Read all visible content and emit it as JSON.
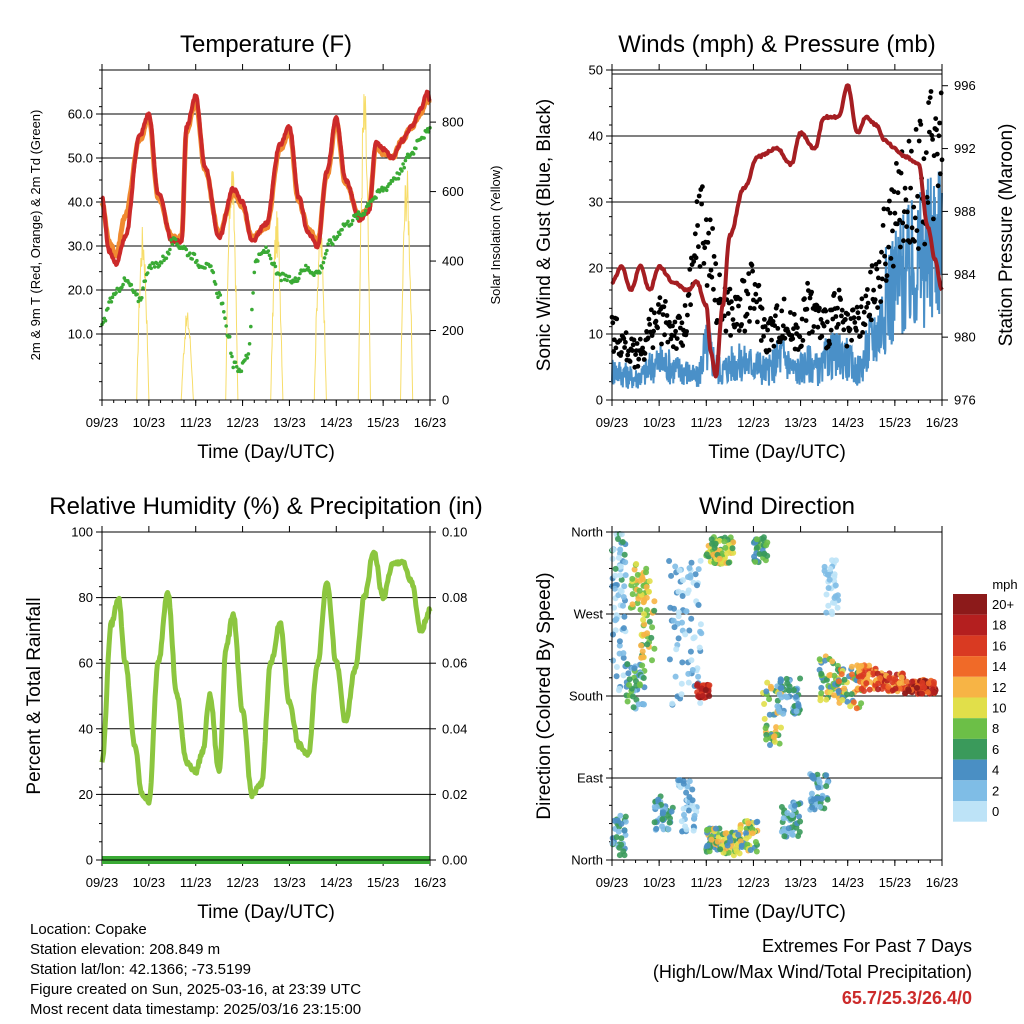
{
  "footer": {
    "location": "Location: Copake",
    "elevation": "Station elevation: 208.849 m",
    "latlon": "Station lat/lon: 42.1366; -73.5199",
    "created": "Figure created on Sun, 2025-03-16, at 23:39 UTC",
    "recent": "Most recent data timestamp: 2025/03/16 23:15:00"
  },
  "extremes": {
    "title": "Extremes For Past 7 Days",
    "subtitle": "(High/Low/Max Wind/Total Precipitation)",
    "values": "65.7/25.3/26.4/0",
    "color": "#cc2a2a"
  },
  "chart_data": [
    {
      "type": "line",
      "title": "Temperature (F)",
      "xlabel": "Time (Day/UTC)",
      "ylabel": "2m & 9m T (Red, Orange) & 2m Td (Green)",
      "y2label": "Solar Insolation (Yellow)",
      "xticks": [
        "09/23",
        "10/23",
        "11/23",
        "12/23",
        "13/23",
        "14/23",
        "15/23",
        "16/23"
      ],
      "ylim": [
        -5,
        70
      ],
      "yticks": [
        "10.0",
        "20.0",
        "30.0",
        "40.0",
        "50.0",
        "60.0"
      ],
      "y2lim": [
        0,
        950
      ],
      "y2ticks": [
        "0",
        "200",
        "400",
        "600",
        "800"
      ],
      "series": [
        {
          "name": "2m T",
          "color": "#cc2a2a",
          "x": [
            0,
            0.15,
            0.3,
            0.5,
            0.8,
            1.0,
            1.2,
            1.5,
            1.7,
            1.8,
            2.0,
            2.2,
            2.5,
            2.8,
            3.0,
            3.2,
            3.5,
            3.8,
            4.0,
            4.2,
            4.4,
            4.6,
            4.8,
            5.0,
            5.2,
            5.5,
            5.7,
            5.85,
            6.0,
            6.2,
            6.4,
            6.6,
            6.8,
            6.95,
            7.0
          ],
          "y": [
            41,
            29,
            26,
            32,
            55,
            60,
            42,
            31,
            31,
            57,
            64,
            48,
            32,
            43,
            40,
            31,
            35,
            53,
            57,
            41,
            33,
            30,
            47,
            59,
            45,
            36,
            38,
            54,
            52,
            50,
            54,
            57,
            61,
            65,
            63
          ]
        },
        {
          "name": "9m T",
          "color": "#f08a30",
          "x": [
            0,
            0.15,
            0.3,
            0.5,
            0.8,
            1.0,
            1.2,
            1.5,
            1.7,
            1.8,
            2.0,
            2.2,
            2.5,
            2.8,
            3.0,
            3.2,
            3.5,
            3.8,
            4.0,
            4.2,
            4.4,
            4.6,
            4.8,
            5.0,
            5.2,
            5.5,
            5.7,
            5.85,
            6.0,
            6.2,
            6.4,
            6.6,
            6.8,
            6.95,
            7.0
          ],
          "y": [
            40,
            31,
            28,
            37,
            54,
            59,
            41,
            32,
            32,
            56,
            63,
            47,
            33,
            42,
            39,
            32,
            34,
            52,
            56,
            40,
            34,
            31,
            46,
            58,
            44,
            37,
            39,
            53,
            51,
            50,
            54,
            57,
            60,
            64,
            62
          ]
        },
        {
          "name": "2m Td",
          "color": "#3aaa35",
          "x": [
            0,
            0.2,
            0.5,
            0.8,
            1.0,
            1.2,
            1.4,
            1.5,
            1.7,
            1.9,
            2.1,
            2.3,
            2.5,
            2.7,
            2.8,
            2.95,
            3.1,
            3.3,
            3.5,
            3.8,
            4.1,
            4.3,
            4.6,
            4.9,
            5.2,
            5.5,
            5.8,
            6.0,
            6.3,
            6.6,
            6.8,
            7.0
          ],
          "y": [
            12,
            18,
            22,
            18,
            25,
            26,
            28,
            31,
            30,
            28,
            26,
            25,
            19,
            10,
            3,
            2,
            5,
            27,
            29,
            23,
            22,
            25,
            24,
            31,
            35,
            37,
            41,
            43,
            46,
            51,
            55,
            56
          ]
        },
        {
          "name": "Solar",
          "color": "#f7dd6a",
          "axis": "y2",
          "peaks": [
            0.87,
            1.82,
            2.77,
            3.73,
            4.66,
            5.6,
            6.5
          ],
          "peakvals": [
            510,
            260,
            720,
            545,
            515,
            920,
            690
          ]
        }
      ]
    },
    {
      "type": "line",
      "title": "Winds (mph) & Pressure (mb)",
      "xlabel": "Time (Day/UTC)",
      "ylabel": "Sonic Wind & Gust (Blue, Black)",
      "y2label": "Station Pressure (Maroon)",
      "xticks": [
        "09/23",
        "10/23",
        "11/23",
        "12/23",
        "13/23",
        "14/23",
        "15/23",
        "16/23"
      ],
      "ylim": [
        0,
        50
      ],
      "yticks": [
        "0",
        "10",
        "20",
        "30",
        "40",
        "50"
      ],
      "y2lim": [
        976,
        997
      ],
      "y2ticks": [
        "976",
        "980",
        "984",
        "988",
        "992",
        "996"
      ],
      "series": [
        {
          "name": "Pressure",
          "color": "#a51e22",
          "axis": "y2",
          "x": [
            0,
            0.2,
            0.4,
            0.6,
            0.8,
            1.0,
            1.3,
            1.6,
            1.8,
            2.0,
            2.1,
            2.2,
            2.35,
            2.5,
            2.8,
            3.1,
            3.5,
            3.8,
            4.0,
            4.3,
            4.5,
            4.8,
            5.0,
            5.2,
            5.4,
            5.6,
            5.8,
            6.0,
            6.2,
            6.5,
            6.7,
            6.85,
            7.0
          ],
          "y": [
            983.5,
            984.5,
            983,
            984.5,
            983,
            984.5,
            983.5,
            983,
            983.5,
            982,
            979,
            977.5,
            982,
            986.5,
            989.5,
            991.5,
            992,
            991,
            993,
            992,
            994,
            994,
            996,
            993,
            994,
            993.5,
            992.5,
            992,
            991.5,
            991,
            987,
            985,
            983
          ]
        },
        {
          "name": "Wind",
          "color": "#4a90c8",
          "x": [
            0,
            0.5,
            1.0,
            1.5,
            1.8,
            2.0,
            2.3,
            2.6,
            3.0,
            3.3,
            3.6,
            3.9,
            4.2,
            4.4,
            4.6,
            4.9,
            5.2,
            5.6,
            5.9,
            6.2,
            6.6,
            6.9,
            7.0
          ],
          "y": [
            4,
            3,
            5,
            4,
            3,
            7,
            4,
            5,
            5,
            4,
            6,
            4,
            5,
            4,
            6,
            6,
            4,
            9,
            15,
            17,
            19,
            22,
            25
          ]
        },
        {
          "name": "Gust",
          "color": "#000000",
          "x": [
            0,
            0.5,
            1.0,
            1.5,
            1.7,
            1.85,
            2.0,
            2.3,
            2.6,
            3.0,
            3.3,
            3.6,
            3.9,
            4.2,
            4.5,
            4.8,
            5.0,
            5.3,
            5.6,
            5.9,
            6.2,
            6.6,
            6.9,
            7.0
          ],
          "y": [
            10,
            7,
            12,
            10,
            17,
            28,
            24,
            15,
            13,
            16,
            10,
            12,
            10,
            14,
            11,
            13,
            10,
            12,
            17,
            26,
            31,
            33,
            40,
            48
          ]
        }
      ]
    },
    {
      "type": "line",
      "title": "Relative Humidity (%) & Precipitation (in)",
      "xlabel": "Time (Day/UTC)",
      "ylabel": "Percent & Total Rainfall",
      "xticks": [
        "09/23",
        "10/23",
        "11/23",
        "12/23",
        "13/23",
        "14/23",
        "15/23",
        "16/23"
      ],
      "ylim": [
        0,
        100
      ],
      "yticks": [
        "0",
        "20",
        "40",
        "60",
        "80",
        "100"
      ],
      "y2lim": [
        0,
        0.1
      ],
      "y2ticks": [
        "0.00",
        "0.02",
        "0.04",
        "0.06",
        "0.08",
        "0.10"
      ],
      "series": [
        {
          "name": "RH",
          "color": "#8cc63f",
          "x": [
            0,
            0.2,
            0.35,
            0.5,
            0.7,
            0.85,
            1.0,
            1.2,
            1.4,
            1.6,
            1.8,
            2.0,
            2.15,
            2.3,
            2.5,
            2.65,
            2.8,
            3.0,
            3.2,
            3.4,
            3.6,
            3.8,
            4.0,
            4.2,
            4.4,
            4.6,
            4.8,
            5.0,
            5.2,
            5.4,
            5.6,
            5.8,
            6.0,
            6.2,
            6.4,
            6.6,
            6.8,
            7.0
          ],
          "y": [
            30,
            72,
            80,
            60,
            35,
            20,
            18,
            60,
            82,
            50,
            30,
            27,
            33,
            50,
            27,
            65,
            75,
            45,
            20,
            23,
            60,
            72,
            48,
            35,
            32,
            60,
            85,
            60,
            42,
            58,
            80,
            94,
            80,
            90,
            91,
            85,
            70,
            76
          ]
        },
        {
          "name": "Precip",
          "color": "#3aaa35",
          "axis": "y2",
          "x": [
            0,
            7
          ],
          "y": [
            0,
            0
          ]
        }
      ]
    },
    {
      "type": "scatter",
      "title": "Wind Direction",
      "xlabel": "Time (Day/UTC)",
      "ylabel": "Direction (Colored By Speed)",
      "xticks": [
        "09/23",
        "10/23",
        "11/23",
        "12/23",
        "13/23",
        "14/23",
        "15/23",
        "16/23"
      ],
      "yticks": [
        "North",
        "East",
        "South",
        "West",
        "North"
      ],
      "ylim": [
        0,
        360
      ],
      "legend": {
        "title": "mph",
        "labels": [
          "0",
          "2",
          "4",
          "6",
          "8",
          "10",
          "12",
          "14",
          "16",
          "18",
          "20+"
        ],
        "colors": [
          "#bde3f7",
          "#7fbde6",
          "#4a8fc4",
          "#3a9a5b",
          "#6cbf47",
          "#e1df4a",
          "#f7b445",
          "#f06a28",
          "#d93a22",
          "#b41f1f",
          "#8c1a1a"
        ]
      }
    }
  ]
}
